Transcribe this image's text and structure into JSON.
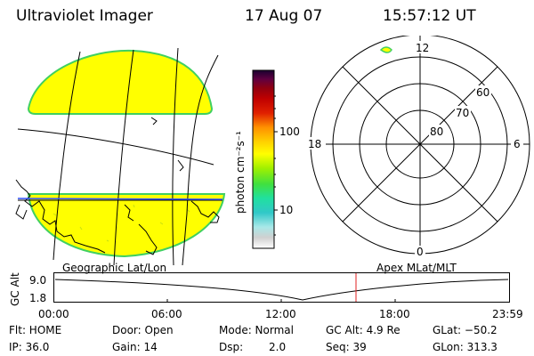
{
  "header": {
    "title": "Ultraviolet Imager",
    "date": "17 Aug 07",
    "time": "15:57:12 UT"
  },
  "colorbar": {
    "unit_label": "photon cm⁻²s⁻¹",
    "tick_100": "100",
    "tick_10": "10",
    "scale": "log",
    "colors": [
      "#ffffff",
      "#d8d8d8",
      "#a8e8e8",
      "#30c8c8",
      "#20e0a0",
      "#40e040",
      "#a0f000",
      "#ffff00",
      "#ffd000",
      "#ff9000",
      "#e02000",
      "#c00000",
      "#900010",
      "#600040",
      "#1a0030"
    ]
  },
  "left_map": {
    "caption": "Geographic Lat/Lon",
    "aurora_color": "#ffff00",
    "aurora_edge": "#40d060"
  },
  "polar_plot": {
    "caption": "Apex MLat/MLT",
    "mlt_labels": {
      "top": "12",
      "left": "18",
      "right": "6",
      "bottom": "0"
    },
    "mlat_labels": [
      "60",
      "70",
      "80"
    ]
  },
  "altitude_panel": {
    "ylabel": "GC Alt",
    "ytick_top": "9.0",
    "ytick_bottom": "1.8",
    "xticks": [
      "00:00",
      "06:00",
      "12:00",
      "18:00",
      "23:59"
    ],
    "marker_color": "#e02020"
  },
  "status": {
    "flt": "Flt: HOME",
    "ip": "IP: 36.0",
    "door": "Door: Open",
    "gain": "Gain: 14",
    "mode": "Mode: Normal",
    "dsp_label": "Dsp:",
    "dsp_value": "2.0",
    "gc_alt": "GC Alt: 4.9 Re",
    "seq": "Seq: 39",
    "glat": "GLat: −50.2",
    "glon": "GLon: 313.3"
  }
}
